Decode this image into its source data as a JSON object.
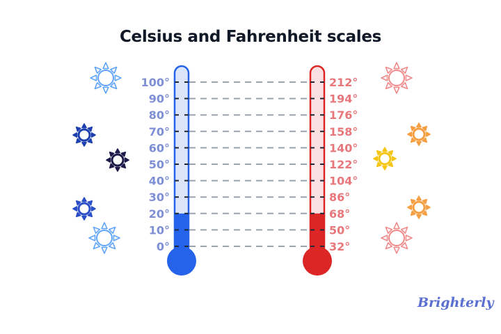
{
  "title": "Celsius and Fahrenheit scales",
  "celsius": {
    "labels": [
      "100°",
      "90°",
      "80°",
      "70°",
      "60°",
      "50°",
      "40°",
      "30°",
      "20°",
      "10°",
      "0°"
    ],
    "current_value": 20,
    "range": [
      0,
      100
    ],
    "color": "#2563eb",
    "light_color": "#dbe6fb",
    "label_color": "#7f8fd6"
  },
  "fahrenheit": {
    "labels": [
      "212°",
      "194°",
      "176°",
      "158°",
      "140°",
      "122°",
      "104°",
      "86°",
      "68°",
      "50°",
      "32°"
    ],
    "current_value": 68,
    "range": [
      32,
      212
    ],
    "color": "#dc2626",
    "light_color": "#fbe0e1",
    "label_color": "#e8777c"
  },
  "left_suns": [
    {
      "color": "#60a5fa",
      "style": "outline"
    },
    {
      "color": "#1e40af",
      "style": "filled-dark"
    },
    {
      "color": "#1e1b4b",
      "style": "filled-dark"
    },
    {
      "color": "#2b4fc7",
      "style": "filled-dark"
    },
    {
      "color": "#60a5fa",
      "style": "outline"
    }
  ],
  "right_suns": [
    {
      "color": "#f08a8a",
      "style": "outline"
    },
    {
      "color": "#f59e42",
      "style": "filled-dark"
    },
    {
      "color": "#f5c518",
      "style": "filled-dark"
    },
    {
      "color": "#f59e42",
      "style": "filled-dark"
    },
    {
      "color": "#f08a8a",
      "style": "outline"
    }
  ],
  "logo": "Brighterly"
}
